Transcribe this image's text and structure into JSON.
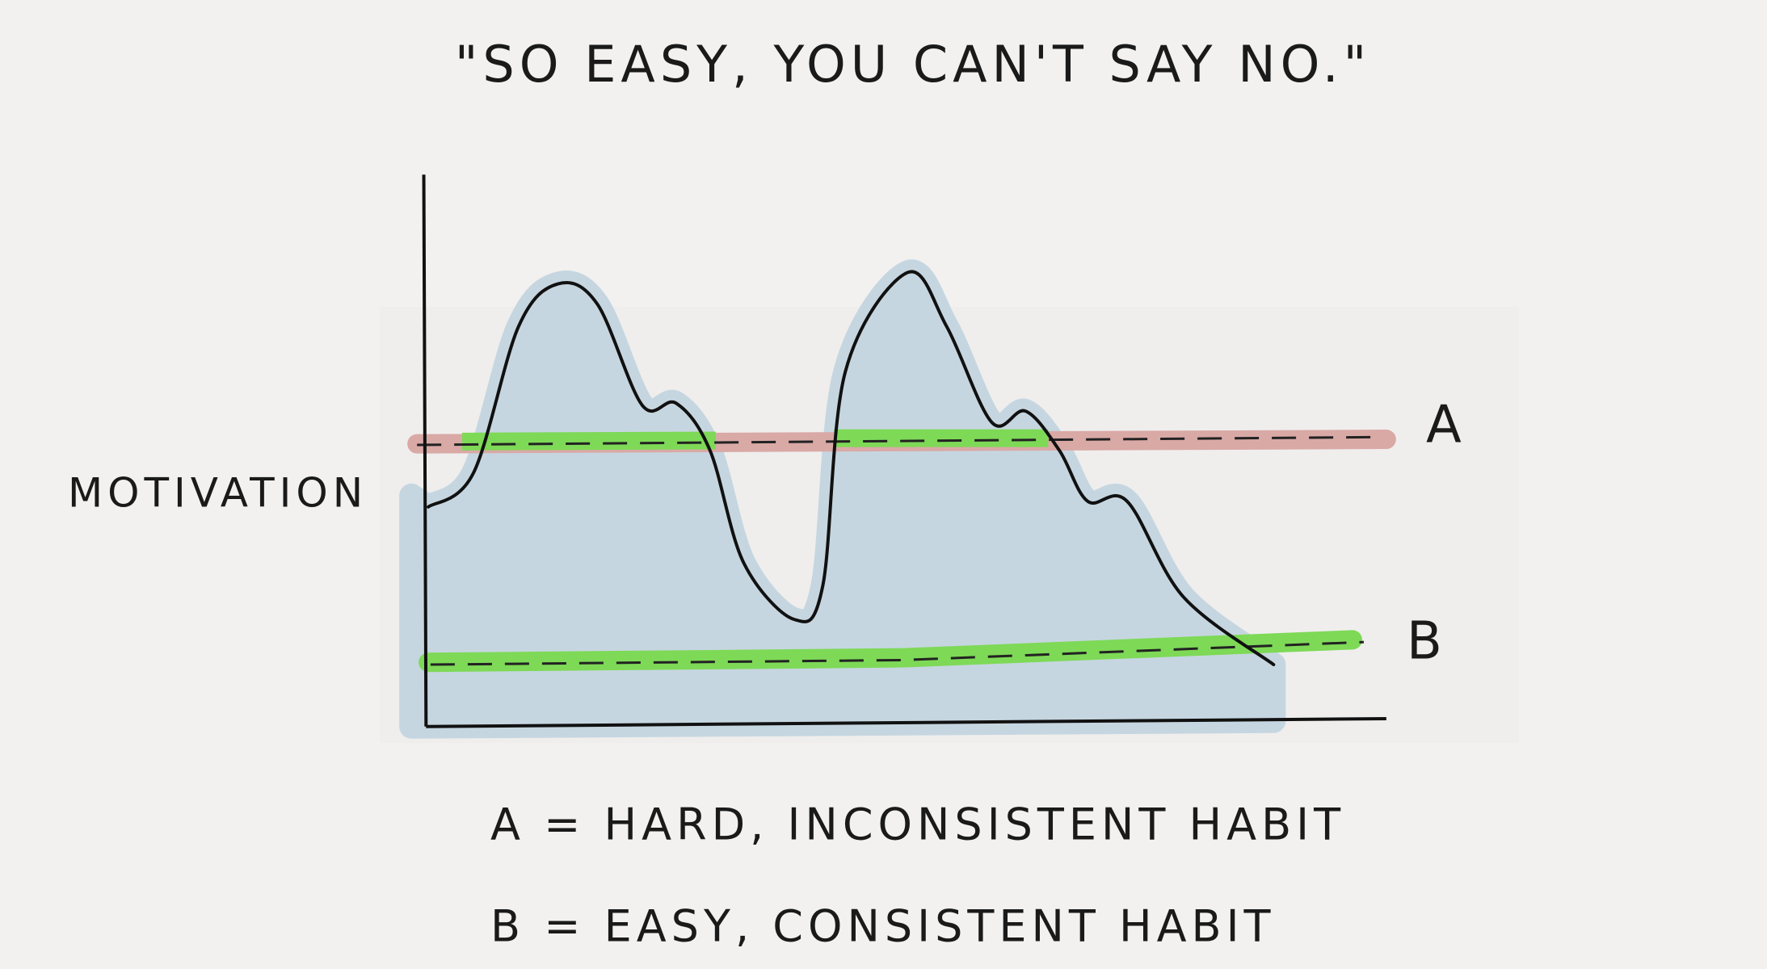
{
  "title": "\"SO EASY, YOU CAN'T SAY NO.\"",
  "axis_label": "MOTIVATION",
  "lines": [
    {
      "label": "A"
    },
    {
      "label": "B"
    }
  ],
  "legend": [
    "A = HARD, INCONSISTENT HABIT",
    "B = EASY, CONSISTENT HABIT"
  ]
}
